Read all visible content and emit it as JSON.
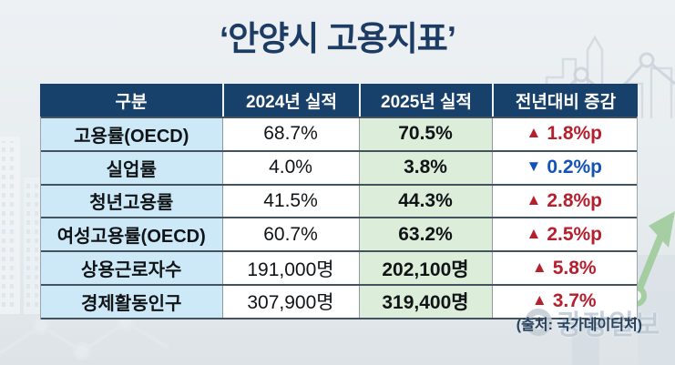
{
  "title": "‘안양시 고용지표’",
  "table": {
    "headers": [
      "구분",
      "2024년 실적",
      "2025년 실적",
      "전년대비 증감"
    ],
    "rows": [
      {
        "label": "고용률(OECD)",
        "y2024": "68.7%",
        "y2025": "70.5%",
        "change": "1.8%p",
        "direction": "up"
      },
      {
        "label": "실업률",
        "y2024": "4.0%",
        "y2025": "3.8%",
        "change": "0.2%p",
        "direction": "down"
      },
      {
        "label": "청년고용률",
        "y2024": "41.5%",
        "y2025": "44.3%",
        "change": "2.8%p",
        "direction": "up"
      },
      {
        "label": "여성고용률(OECD)",
        "y2024": "60.7%",
        "y2025": "63.2%",
        "change": "2.5%p",
        "direction": "up"
      },
      {
        "label": "상용근로자수",
        "y2024": "191,000명",
        "y2025": "202,100명",
        "change": "5.8%",
        "direction": "up"
      },
      {
        "label": "경제활동인구",
        "y2024": "307,900명",
        "y2025": "319,400명",
        "change": "3.7%",
        "direction": "up"
      }
    ],
    "up_marker": "▲",
    "down_marker": "▼"
  },
  "source_note": "(출처: 국가데이터처)",
  "watermark_text": "광장일보",
  "colors": {
    "header_bg": "#17406a",
    "label_column_bg": "#cde9f7",
    "result_2025_bg": "#dcedda",
    "up_color": "#b51f2e",
    "down_color": "#1353b5",
    "title_color": "#1d3c64"
  },
  "chart_data": {
    "type": "table",
    "title": "‘안양시 고용지표’",
    "columns": [
      "구분",
      "2024년 실적",
      "2025년 실적",
      "전년대비 증감"
    ],
    "rows": [
      [
        "고용률(OECD)",
        "68.7%",
        "70.5%",
        "▲ 1.8%p"
      ],
      [
        "실업률",
        "4.0%",
        "3.8%",
        "▼ 0.2%p"
      ],
      [
        "청년고용률",
        "41.5%",
        "44.3%",
        "▲ 2.8%p"
      ],
      [
        "여성고용률(OECD)",
        "60.7%",
        "63.2%",
        "▲ 2.5%p"
      ],
      [
        "상용근로자수",
        "191,000명",
        "202,100명",
        "▲ 5.8%"
      ],
      [
        "경제활동인구",
        "307,900명",
        "319,400명",
        "▲ 3.7%"
      ]
    ],
    "source": "(출처: 국가데이터처)"
  }
}
